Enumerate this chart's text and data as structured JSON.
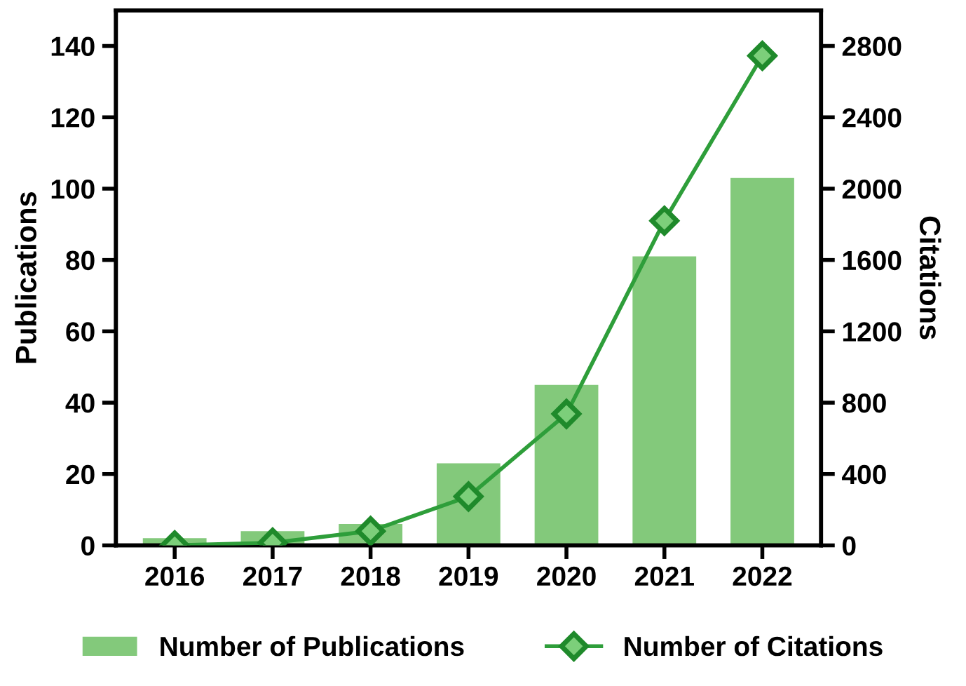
{
  "chart_data": {
    "type": "bar",
    "categories": [
      "2016",
      "2017",
      "2018",
      "2019",
      "2020",
      "2021",
      "2022"
    ],
    "ylabel": "Publications",
    "y2label": "Citations",
    "ylim": [
      0,
      150
    ],
    "yticks": [
      0,
      20,
      40,
      60,
      80,
      100,
      120,
      140
    ],
    "y2lim": [
      0,
      3000
    ],
    "y2ticks": [
      0,
      400,
      800,
      1200,
      1600,
      2000,
      2400,
      2800
    ],
    "series": [
      {
        "name": "Number of Publications",
        "color": "#83c97b",
        "values": [
          2,
          4,
          6,
          23,
          45,
          81,
          103
        ]
      },
      {
        "name": "Number of Citations",
        "type": "line",
        "axis": "y2",
        "color": "#2e9e3a",
        "marker": "diamond",
        "line_style": "solid",
        "values": [
          0,
          15,
          80,
          274,
          737,
          1820,
          2745
        ]
      }
    ],
    "legend": "bottom",
    "grid": false
  }
}
